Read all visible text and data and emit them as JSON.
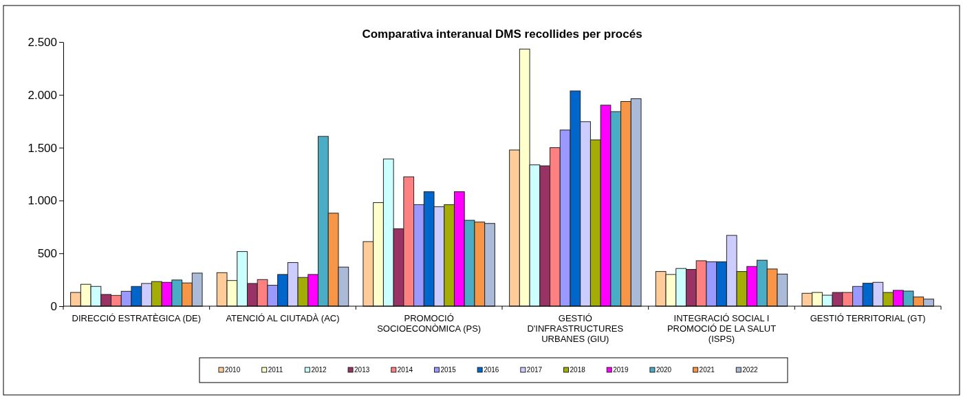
{
  "chart_data": {
    "type": "bar",
    "title": "Comparativa interanual DMS recollides per procés",
    "categories": [
      "DIRECCIÓ ESTRATÈGICA (DE)",
      "ATENCIÓ AL CIUTADÀ (AC)",
      "PROMOCIÓ SOCIOECONÒMICA (PS)",
      "GESTIÓ D'INFRASTRUCTURES URBANES (GIU)",
      "INTEGRACIÓ SOCIAL I PROMOCIÓ DE LA SALUT (ISPS)",
      "GESTIÓ TERRITORIAL (GT)"
    ],
    "series": [
      {
        "name": "2010",
        "color": "#ffcc99",
        "values": [
          130,
          317,
          611,
          1478,
          328,
          122
        ]
      },
      {
        "name": "2011",
        "color": "#ffffcc",
        "values": [
          207,
          243,
          980,
          2433,
          300,
          130
        ]
      },
      {
        "name": "2012",
        "color": "#ccffff",
        "values": [
          187,
          517,
          1393,
          1337,
          357,
          104
        ]
      },
      {
        "name": "2013",
        "color": "#993366",
        "values": [
          111,
          215,
          733,
          1328,
          348,
          130
        ]
      },
      {
        "name": "2014",
        "color": "#ff8080",
        "values": [
          102,
          252,
          1224,
          1500,
          430,
          130
        ]
      },
      {
        "name": "2015",
        "color": "#9999ff",
        "values": [
          141,
          198,
          961,
          1667,
          420,
          187
        ]
      },
      {
        "name": "2016",
        "color": "#0066cc",
        "values": [
          187,
          300,
          1083,
          2037,
          420,
          217
        ]
      },
      {
        "name": "2017",
        "color": "#ccccff",
        "values": [
          215,
          413,
          941,
          1746,
          670,
          226
        ]
      },
      {
        "name": "2018",
        "color": "#a4ac06",
        "values": [
          233,
          272,
          961,
          1574,
          328,
          130
        ]
      },
      {
        "name": "2019",
        "color": "#ff00ff",
        "values": [
          226,
          300,
          1083,
          1902,
          376,
          150
        ]
      },
      {
        "name": "2020",
        "color": "#4bacc6",
        "values": [
          248,
          1607,
          813,
          1841,
          435,
          143
        ]
      },
      {
        "name": "2021",
        "color": "#f79646",
        "values": [
          220,
          880,
          796,
          1937,
          352,
          87
        ]
      },
      {
        "name": "2022",
        "color": "#aabad7",
        "values": [
          313,
          370,
          783,
          1963,
          304,
          67
        ]
      }
    ],
    "ylim": [
      0,
      2500
    ],
    "yticks": [
      0,
      500,
      {
        "value": 1000,
        "label": "1.000"
      },
      {
        "value": 1500,
        "label": "1.500"
      },
      {
        "value": 2000,
        "label": "2.000"
      },
      {
        "value": 2500,
        "label": "2.500"
      }
    ],
    "grid": false,
    "legend": "bottom"
  }
}
